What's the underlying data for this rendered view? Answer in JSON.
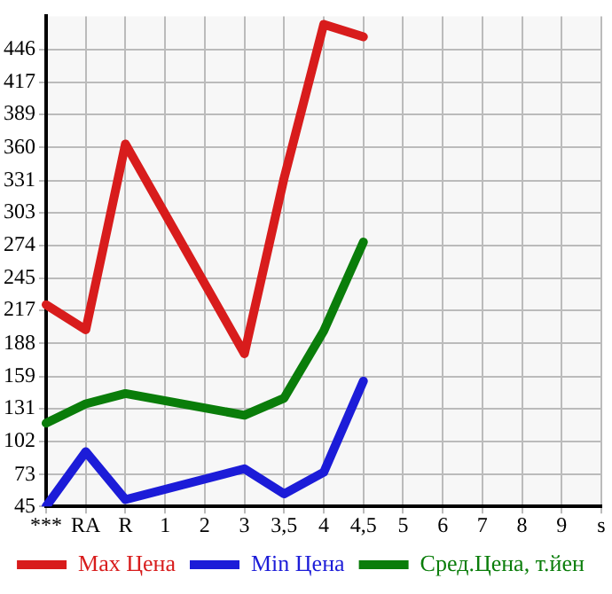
{
  "chart_data": {
    "type": "line",
    "categories": [
      "***",
      "RA",
      "R",
      "1",
      "2",
      "3",
      "3,5",
      "4",
      "4,5",
      "5",
      "6",
      "7",
      "8",
      "9",
      "s"
    ],
    "series": [
      {
        "name": "Max Цена",
        "color": "#d81c1c",
        "values": [
          222,
          200,
          363,
          null,
          null,
          179,
          333,
          468,
          457,
          null,
          null,
          null,
          null,
          null,
          null
        ]
      },
      {
        "name": "Min Цена",
        "color": "#1c1cd8",
        "values": [
          45,
          93,
          51,
          null,
          null,
          78,
          56,
          75,
          155,
          null,
          null,
          null,
          null,
          null,
          null
        ]
      },
      {
        "name": "Сред.Цена, т.йен",
        "color": "#0a7d0a",
        "values": [
          118,
          135,
          144,
          null,
          null,
          125,
          140,
          199,
          277,
          null,
          null,
          null,
          null,
          null,
          null
        ]
      }
    ],
    "ylim": [
      45,
      475
    ],
    "yticks": [
      45,
      73,
      102,
      131,
      159,
      188,
      217,
      245,
      274,
      303,
      331,
      360,
      389,
      417,
      446
    ],
    "grid": true,
    "legend": "bottom",
    "marker": "none",
    "line_style": "solid"
  }
}
